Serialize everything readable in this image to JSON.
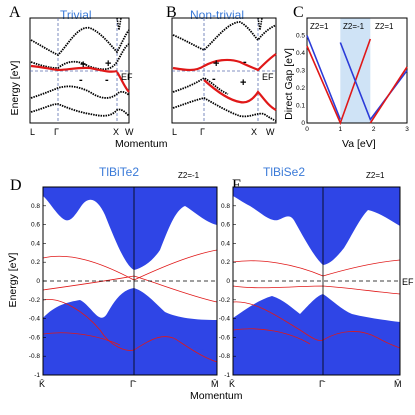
{
  "colors": {
    "accent": "#3a7ad8",
    "blue": "#2b3bd8",
    "red": "#e01818",
    "black": "#000000",
    "bandFill": "#2f45e6",
    "shade": "#cfe3f6",
    "dash": "#5b6fb0"
  },
  "panels": {
    "A": {
      "letter": "A",
      "title": "Trivial",
      "ylabel": "Energy [eV]",
      "fermi": "EF",
      "xticks": [
        "L",
        "Γ",
        "X",
        "W"
      ],
      "parities": [
        "+",
        "+",
        "-",
        "-"
      ]
    },
    "B": {
      "letter": "B",
      "title": "Non-trivial",
      "ylabel": "",
      "fermi": "EF",
      "xticks": [
        "L",
        "Γ",
        "X",
        "W"
      ],
      "parities": [
        "+",
        "-",
        "-",
        "+"
      ]
    },
    "C": {
      "letter": "C",
      "ylabel": "Direct Gap [eV]",
      "xlabel": "Va [eV]",
      "regions": [
        "Z2=1",
        "Z2=-1",
        "Z2=1"
      ]
    },
    "D": {
      "letter": "D",
      "title": "TlBiTe2",
      "invariant": "Z2=-1",
      "ylabel": "Energy [eV]",
      "xticks": [
        "K̄",
        "Γ̄",
        "M̄"
      ]
    },
    "E": {
      "letter": "E",
      "title": "TlBiSe2",
      "invariant": "Z2=1",
      "fermi": "EF",
      "xticks": [
        "K̄",
        "Γ̄",
        "M̄"
      ]
    }
  },
  "xlabel_top": "Momentum",
  "xlabel_bottom": "Momentum",
  "chart_data": [
    {
      "panel": "C",
      "type": "line",
      "xlabel": "Va [eV]",
      "ylabel": "Direct Gap [eV]",
      "xlim": [
        0,
        3
      ],
      "ylim": [
        0,
        0.6
      ],
      "xticks": [
        0,
        1,
        2,
        3
      ],
      "yticks": [
        0,
        0.1,
        0.2,
        0.3,
        0.4,
        0.5
      ],
      "shaded_range": [
        1.0,
        1.9
      ],
      "series": [
        {
          "color": "blue",
          "x": [
            0,
            1.0
          ],
          "y": [
            0.5,
            0.02
          ]
        },
        {
          "color": "red",
          "x": [
            0,
            1.0,
            1.9
          ],
          "y": [
            0.44,
            0.0,
            0.48
          ]
        },
        {
          "color": "blue",
          "x": [
            1.0,
            1.9,
            3.0
          ],
          "y": [
            0.46,
            0.02,
            0.3
          ]
        },
        {
          "color": "red",
          "x": [
            1.9,
            3.0
          ],
          "y": [
            0.0,
            0.32
          ]
        }
      ]
    },
    {
      "panel": "D",
      "type": "area",
      "ylim": [
        -1,
        1
      ],
      "yticks": [
        -1,
        -0.8,
        -0.6,
        -0.4,
        -0.2,
        0,
        0.2,
        0.4,
        0.6,
        0.8
      ],
      "fermi_level": 0
    },
    {
      "panel": "E",
      "type": "area",
      "ylim": [
        -1,
        1
      ],
      "yticks": [
        -1,
        -0.8,
        -0.6,
        -0.4,
        -0.2,
        0,
        0.2,
        0.4,
        0.6,
        0.8
      ],
      "fermi_level": 0
    }
  ]
}
